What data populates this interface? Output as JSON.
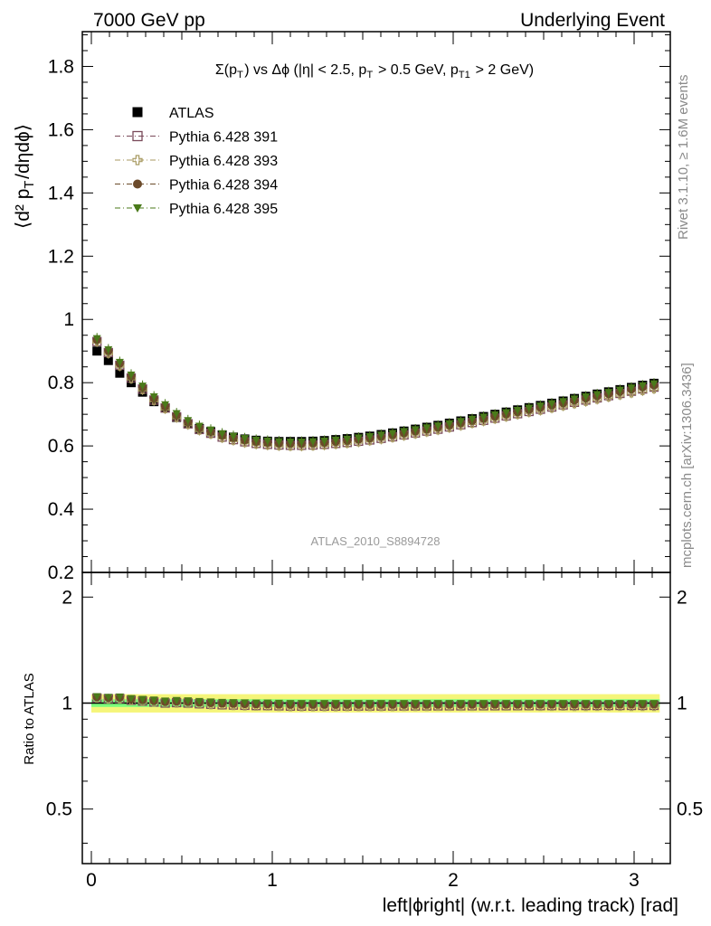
{
  "header": {
    "left": "7000 GeV pp",
    "right": "Underlying Event"
  },
  "side_labels": {
    "rivet": "Rivet 3.1.10, ≥ 1.6M events",
    "mcplots": "mcplots.cern.ch [arXiv:1306.3436]"
  },
  "plot_title": "Σ(p_T) vs Δϕ (|η| < 2.5, p_T > 0.5 GeV, p_T1 > 2 GeV)",
  "watermark": "ATLAS_2010_S8894728",
  "colors": {
    "atlas": "#000000",
    "py391": "#7a4a5a",
    "py393": "#a89a60",
    "py394": "#6b4a2a",
    "py395": "#4a7a1a",
    "band_inner": "#7cfc7c",
    "band_outer": "#f5f57a"
  },
  "chart_data": {
    "type": "scatter",
    "main_panel": {
      "ylabel": "⟨d² p_T/dηdϕ⟩",
      "ylim": [
        0.2,
        1.91
      ],
      "y_ticks": [
        "0.2",
        "0.4",
        "0.6",
        "0.8",
        "1",
        "1.2",
        "1.4",
        "1.6",
        "1.8"
      ],
      "legend_position": "top-left",
      "x": [
        0.031,
        0.094,
        0.157,
        0.22,
        0.283,
        0.346,
        0.408,
        0.471,
        0.534,
        0.597,
        0.66,
        0.723,
        0.785,
        0.848,
        0.911,
        0.974,
        1.037,
        1.1,
        1.162,
        1.225,
        1.288,
        1.351,
        1.414,
        1.477,
        1.539,
        1.602,
        1.665,
        1.728,
        1.791,
        1.854,
        1.916,
        1.979,
        2.042,
        2.105,
        2.168,
        2.231,
        2.293,
        2.356,
        2.419,
        2.482,
        2.545,
        2.608,
        2.67,
        2.733,
        2.796,
        2.859,
        2.922,
        2.985,
        3.047,
        3.11
      ],
      "series": [
        {
          "name": "ATLAS",
          "marker": "square-filled",
          "values": [
            0.9,
            0.87,
            0.83,
            0.8,
            0.77,
            0.74,
            0.72,
            0.69,
            0.67,
            0.655,
            0.645,
            0.635,
            0.628,
            0.622,
            0.618,
            0.615,
            0.614,
            0.614,
            0.614,
            0.615,
            0.617,
            0.62,
            0.623,
            0.627,
            0.631,
            0.636,
            0.641,
            0.647,
            0.653,
            0.659,
            0.665,
            0.672,
            0.679,
            0.686,
            0.693,
            0.7,
            0.707,
            0.714,
            0.721,
            0.728,
            0.735,
            0.742,
            0.75,
            0.757,
            0.764,
            0.771,
            0.778,
            0.785,
            0.792,
            0.798
          ]
        },
        {
          "name": "Pythia 6.428 391",
          "marker": "square-open",
          "values": [
            0.93,
            0.895,
            0.855,
            0.815,
            0.78,
            0.745,
            0.72,
            0.692,
            0.67,
            0.652,
            0.64,
            0.628,
            0.62,
            0.613,
            0.608,
            0.605,
            0.603,
            0.602,
            0.602,
            0.603,
            0.605,
            0.608,
            0.611,
            0.615,
            0.619,
            0.624,
            0.629,
            0.635,
            0.641,
            0.647,
            0.653,
            0.66,
            0.667,
            0.674,
            0.681,
            0.688,
            0.695,
            0.702,
            0.709,
            0.716,
            0.723,
            0.73,
            0.738,
            0.745,
            0.752,
            0.759,
            0.766,
            0.773,
            0.78,
            0.786
          ]
        },
        {
          "name": "Pythia 6.428 393",
          "marker": "cross-open",
          "values": [
            0.93,
            0.893,
            0.853,
            0.813,
            0.778,
            0.744,
            0.718,
            0.69,
            0.668,
            0.65,
            0.638,
            0.626,
            0.618,
            0.611,
            0.606,
            0.603,
            0.601,
            0.6,
            0.6,
            0.601,
            0.603,
            0.606,
            0.609,
            0.613,
            0.617,
            0.622,
            0.627,
            0.633,
            0.639,
            0.645,
            0.651,
            0.658,
            0.665,
            0.672,
            0.679,
            0.686,
            0.693,
            0.7,
            0.707,
            0.713,
            0.72,
            0.727,
            0.734,
            0.741,
            0.748,
            0.755,
            0.762,
            0.768,
            0.775,
            0.781
          ]
        },
        {
          "name": "Pythia 6.428 394",
          "marker": "circle-filled",
          "values": [
            0.935,
            0.9,
            0.86,
            0.82,
            0.785,
            0.75,
            0.725,
            0.697,
            0.675,
            0.657,
            0.645,
            0.633,
            0.625,
            0.618,
            0.613,
            0.61,
            0.608,
            0.607,
            0.607,
            0.608,
            0.61,
            0.613,
            0.616,
            0.62,
            0.624,
            0.629,
            0.634,
            0.64,
            0.646,
            0.652,
            0.658,
            0.665,
            0.672,
            0.679,
            0.686,
            0.693,
            0.7,
            0.707,
            0.714,
            0.721,
            0.728,
            0.735,
            0.743,
            0.75,
            0.757,
            0.764,
            0.771,
            0.778,
            0.785,
            0.791
          ]
        },
        {
          "name": "Pythia 6.428 395",
          "marker": "triangle-down-filled",
          "values": [
            0.94,
            0.905,
            0.865,
            0.825,
            0.79,
            0.756,
            0.731,
            0.703,
            0.681,
            0.663,
            0.651,
            0.639,
            0.631,
            0.624,
            0.619,
            0.616,
            0.614,
            0.613,
            0.613,
            0.614,
            0.616,
            0.619,
            0.622,
            0.626,
            0.63,
            0.635,
            0.64,
            0.646,
            0.652,
            0.658,
            0.664,
            0.671,
            0.678,
            0.685,
            0.692,
            0.699,
            0.706,
            0.713,
            0.72,
            0.727,
            0.734,
            0.741,
            0.749,
            0.756,
            0.763,
            0.77,
            0.777,
            0.784,
            0.791,
            0.797
          ]
        }
      ]
    },
    "ratio_panel": {
      "ylabel": "Ratio to ATLAS",
      "ylim": [
        0.35,
        2.35
      ],
      "y_ticks": [
        "0.5",
        "1",
        "2"
      ],
      "band_inner": 0.025,
      "band_outer": 0.06
    },
    "x_axis": {
      "xlabel": "left|ϕright| (w.r.t. leading track) [rad]",
      "xlim": [
        -0.05,
        3.2
      ],
      "ticks": [
        "0",
        "1",
        "2",
        "3"
      ]
    }
  }
}
